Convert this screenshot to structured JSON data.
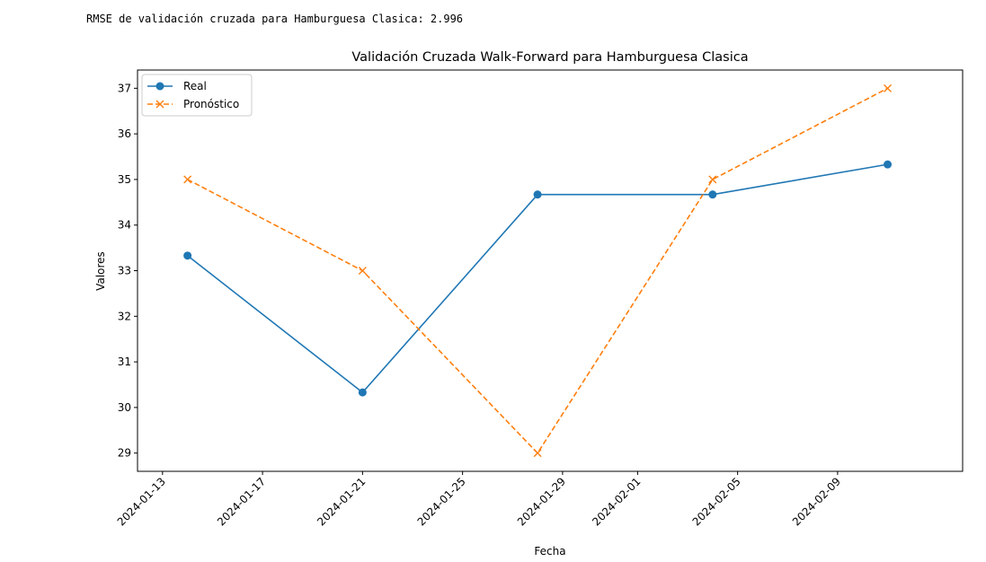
{
  "console": {
    "output_line": "RMSE de validación cruzada para Hamburguesa Clasica: 2.996"
  },
  "chart_data": {
    "type": "line",
    "title": "Validación Cruzada Walk-Forward para Hamburguesa Clasica",
    "xlabel": "Fecha",
    "ylabel": "Valores",
    "x_ticks": [
      "2024-01-13",
      "2024-01-17",
      "2024-01-21",
      "2024-01-25",
      "2024-01-29",
      "2024-02-01",
      "2024-02-05",
      "2024-02-09"
    ],
    "y_ticks": [
      29,
      30,
      31,
      32,
      33,
      34,
      35,
      36,
      37
    ],
    "xlim": [
      "2024-01-12",
      "2024-02-14"
    ],
    "ylim": [
      28.6,
      37.4
    ],
    "legend_position": "top-left",
    "grid": false,
    "series": [
      {
        "name": "Real",
        "color": "#1f77b4",
        "linestyle": "solid",
        "marker": "circle",
        "x": [
          "2024-01-14",
          "2024-01-21",
          "2024-01-28",
          "2024-02-04",
          "2024-02-11"
        ],
        "values": [
          33.33,
          30.33,
          34.67,
          34.67,
          35.33
        ]
      },
      {
        "name": "Pronóstico",
        "color": "#ff7f0e",
        "linestyle": "dashed",
        "marker": "x",
        "x": [
          "2024-01-14",
          "2024-01-21",
          "2024-01-28",
          "2024-02-04",
          "2024-02-11"
        ],
        "values": [
          35,
          33,
          29,
          35,
          37
        ]
      }
    ]
  }
}
